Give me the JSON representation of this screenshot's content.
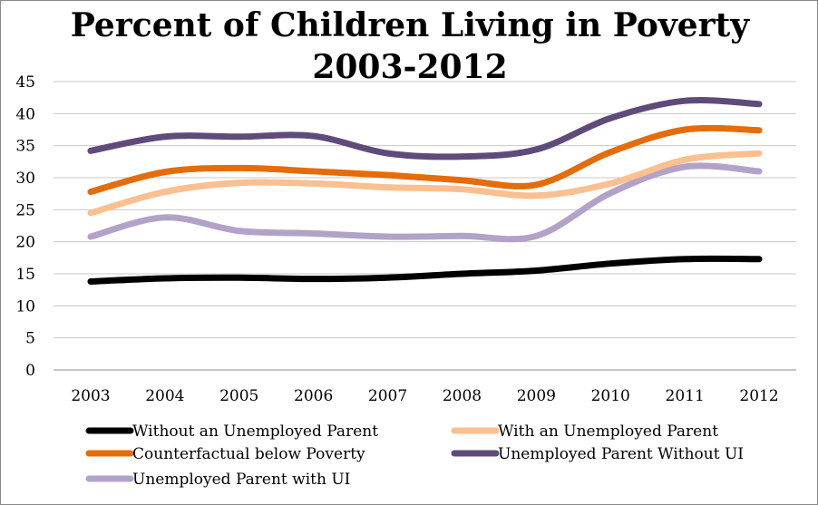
{
  "chart_data": {
    "type": "line",
    "title": "Percent of Children Living in Poverty",
    "subtitle": "2003-2012",
    "categories": [
      "2003",
      "2004",
      "2005",
      "2006",
      "2007",
      "2008",
      "2009",
      "2010",
      "2011",
      "2012"
    ],
    "ylim": [
      0,
      45
    ],
    "yticks": [
      "0",
      "5",
      "10",
      "15",
      "20",
      "25",
      "30",
      "35",
      "40",
      "45"
    ],
    "grid": true,
    "legend_position": "bottom",
    "series": [
      {
        "name": "Without an Unemployed Parent",
        "color": "#000000",
        "values": [
          13.8,
          14.3,
          14.4,
          14.2,
          14.4,
          15.0,
          15.5,
          16.6,
          17.3,
          17.3
        ]
      },
      {
        "name": "With an Unemployed Parent",
        "color": "#fbbf90",
        "values": [
          24.5,
          27.8,
          29.2,
          29.1,
          28.5,
          28.2,
          27.2,
          29.1,
          32.8,
          33.8
        ]
      },
      {
        "name": "Counterfactual below Poverty",
        "color": "#e46c0a",
        "values": [
          27.8,
          30.9,
          31.5,
          31.0,
          30.4,
          29.6,
          28.9,
          34.0,
          37.5,
          37.4
        ]
      },
      {
        "name": "Unemployed Parent Without UI",
        "color": "#5f4b79",
        "values": [
          34.2,
          36.4,
          36.4,
          36.5,
          33.8,
          33.3,
          34.4,
          39.3,
          42.0,
          41.5
        ]
      },
      {
        "name": "Unemployed Parent with UI",
        "color": "#b3a2c7",
        "values": [
          20.8,
          23.8,
          21.7,
          21.3,
          20.8,
          20.9,
          20.9,
          27.6,
          31.7,
          31.0
        ]
      }
    ]
  }
}
